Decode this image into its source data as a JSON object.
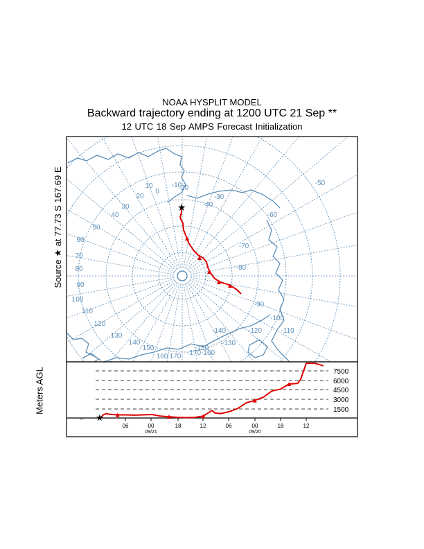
{
  "header": {
    "model": "NOAA HYSPLIT MODEL",
    "title": "Backward trajectory ending at 1200 UTC 21 Sep **",
    "subtitle": "12 UTC 18 Sep    AMPS  Forecast Initialization"
  },
  "source_label": "Source ★ at   77.73 S  167.69 E",
  "map": {
    "longitude_labels": [
      "-50",
      "-60",
      "-70",
      "-80",
      "-90",
      "-100",
      "-110",
      "-120",
      "-130",
      "-140",
      "-150",
      "-160",
      "-170",
      "170",
      "160",
      "150",
      "140",
      "130",
      "120",
      "110",
      "100",
      "90",
      "80",
      "70",
      "60",
      "50",
      "40",
      "30",
      "20",
      "10",
      "0",
      "-10",
      "-20",
      "-30",
      "-40"
    ],
    "trajectory_color": "#dd0000",
    "grid_color": "#5f8fb8"
  },
  "height_panel": {
    "ylabel": "Meters AGL",
    "levels": [
      "7500",
      "6000",
      "4500",
      "3000",
      "1500"
    ],
    "time_ticks": [
      "06",
      "00",
      "18",
      "12",
      "06",
      "00",
      "18",
      "12"
    ],
    "date_labels": [
      "09/21",
      "09/20"
    ]
  },
  "chart_data": {
    "type": "line",
    "title": "Backward trajectory ending at 1200 UTC 21 Sep **",
    "xlabel": "",
    "ylabel": "Meters AGL",
    "ylim": [
      0,
      9000
    ],
    "x_direction": "hours backward from 1200 UTC 21 Sep",
    "series": [
      {
        "x": [
          0,
          1,
          2,
          3,
          6,
          9,
          12,
          15,
          18,
          21,
          24,
          27,
          30,
          33,
          36,
          39,
          40,
          42,
          45,
          48,
          51,
          54,
          57,
          60,
          63,
          66,
          69,
          70,
          72,
          75,
          78
        ],
        "values": [
          0,
          500,
          700,
          600,
          500,
          500,
          450,
          500,
          550,
          300,
          200,
          100,
          60,
          100,
          300,
          1200,
          800,
          700,
          1000,
          1500,
          2400,
          2800,
          3300,
          4300,
          4600,
          5400,
          5500,
          6100,
          8700,
          8700,
          8300
        ]
      }
    ]
  }
}
